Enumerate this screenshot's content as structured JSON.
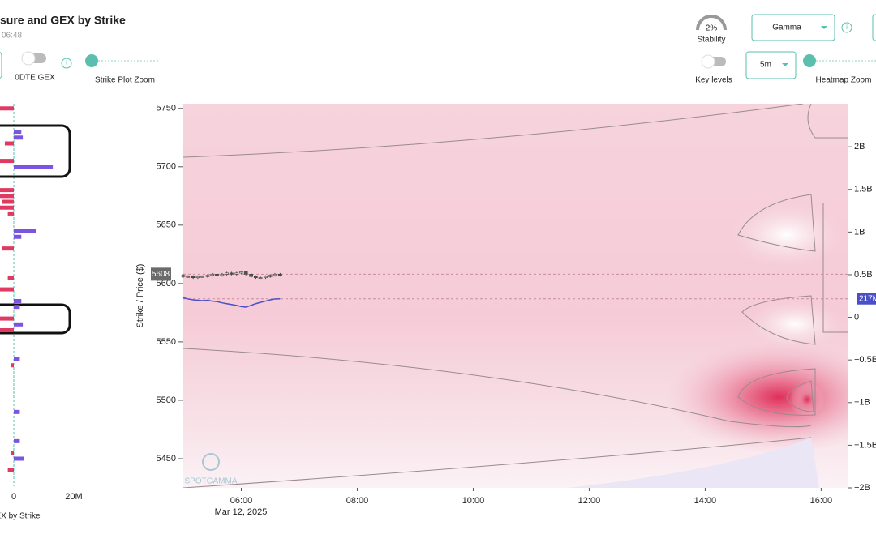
{
  "header": {
    "title": "sure and GEX by Strike",
    "time": "06:48"
  },
  "controls": {
    "odte_gex": "0DTE GEX",
    "strike_zoom": "Strike Plot Zoom",
    "stability_value": "2%",
    "stability_label": "Stability",
    "metric": "Gamma",
    "key_levels": "Key levels",
    "interval": "5m",
    "heatmap_zoom": "Heatmap Zoom"
  },
  "gex_chart": {
    "type": "hbar",
    "title": "EX by Strike",
    "strikes": [
      5750,
      5730,
      5725,
      5720,
      5705,
      5700,
      5680,
      5675,
      5670,
      5665,
      5660,
      5645,
      5640,
      5630,
      5605,
      5595,
      5585,
      5580,
      5570,
      5565,
      5560,
      5535,
      5530,
      5490,
      5465,
      5455,
      5450,
      5440
    ],
    "values": [
      -5,
      2.5,
      3,
      -3,
      -5,
      13,
      -5,
      -5,
      -4,
      -5,
      -2,
      7.5,
      2.5,
      -4,
      -2,
      -5,
      2.5,
      2,
      -5,
      3,
      -5,
      2,
      -1,
      2,
      2,
      -1,
      3.5,
      -2
    ],
    "positive_color": "#7b55e0",
    "negative_color": "#e03a62",
    "xlim": [
      -4.6,
      20
    ],
    "xticks": [
      0,
      {
        "value": 20,
        "label": "20M"
      }
    ],
    "ylim": [
      5425,
      5754
    ]
  },
  "heatmap": {
    "type": "candlestick",
    "y_label": "Strike / Price ($)",
    "x": [
      5,
      5.08,
      5.17,
      5.25,
      5.33,
      5.42,
      5.5,
      5.58,
      5.67,
      5.75,
      5.83,
      5.92,
      6,
      6.08,
      6.17,
      6.25,
      6.33,
      6.42,
      6.5,
      6.58,
      6.67
    ],
    "open": [
      5607,
      5606,
      5606,
      5605,
      5606,
      5606,
      5607,
      5608,
      5607,
      5608,
      5609,
      5608,
      5609,
      5610,
      5608,
      5606,
      5605,
      5605,
      5606,
      5607,
      5608
    ],
    "close": [
      5606,
      5606,
      5605,
      5606,
      5606,
      5607,
      5608,
      5607,
      5608,
      5609,
      5608,
      5609,
      5610,
      5608,
      5606,
      5605,
      5605,
      5606,
      5607,
      5608,
      5607
    ],
    "high": [
      5608,
      5607,
      5607,
      5607,
      5607,
      5608,
      5609,
      5609,
      5609,
      5610,
      5610,
      5610,
      5611,
      5611,
      5609,
      5607,
      5606,
      5607,
      5608,
      5609,
      5609
    ],
    "low": [
      5605,
      5605,
      5604,
      5604,
      5605,
      5605,
      5606,
      5606,
      5606,
      5607,
      5607,
      5607,
      5608,
      5607,
      5605,
      5604,
      5604,
      5604,
      5605,
      5606,
      5606
    ],
    "up_color": "#ffffff",
    "down_color": "#555555",
    "gex_line": {
      "color": "#4a4fc8",
      "axis": "y2",
      "values": [
        230000000,
        215000000,
        205000000,
        200000000,
        195000000,
        200000000,
        190000000,
        185000000,
        170000000,
        160000000,
        150000000,
        140000000,
        125000000,
        120000000,
        140000000,
        160000000,
        175000000,
        190000000,
        205000000,
        215000000,
        217000000
      ]
    },
    "price_marker": 5608,
    "gex_marker": {
      "value": 217000000,
      "label": "217M"
    },
    "xlim": [
      5,
      16.47
    ],
    "xticks": [
      {
        "value": 6,
        "label": "06:00"
      },
      {
        "value": 8,
        "label": "08:00"
      },
      {
        "value": 10,
        "label": "10:00"
      },
      {
        "value": 12,
        "label": "12:00"
      },
      {
        "value": 14,
        "label": "14:00"
      },
      {
        "value": 16,
        "label": "16:00"
      }
    ],
    "x_date_label": "Mar 12, 2025",
    "ylim": [
      5425,
      5754
    ],
    "yticks": [
      5450,
      5500,
      5550,
      5600,
      5650,
      5700,
      5750
    ],
    "y2lim": [
      -2000000000,
      2505000000
    ],
    "y2ticks": [
      {
        "value": -2000000000,
        "label": "−2B"
      },
      {
        "value": -1500000000,
        "label": "−1.5B"
      },
      {
        "value": -1000000000,
        "label": "−1B"
      },
      {
        "value": -500000000,
        "label": "−0.5B"
      },
      0,
      {
        "value": 500000000,
        "label": "0.5B"
      },
      {
        "value": 1000000000,
        "label": "1B"
      },
      {
        "value": 1500000000,
        "label": "1.5B"
      },
      {
        "value": 2000000000,
        "label": "2B"
      }
    ],
    "watermark": "SPOTGAMMA"
  }
}
